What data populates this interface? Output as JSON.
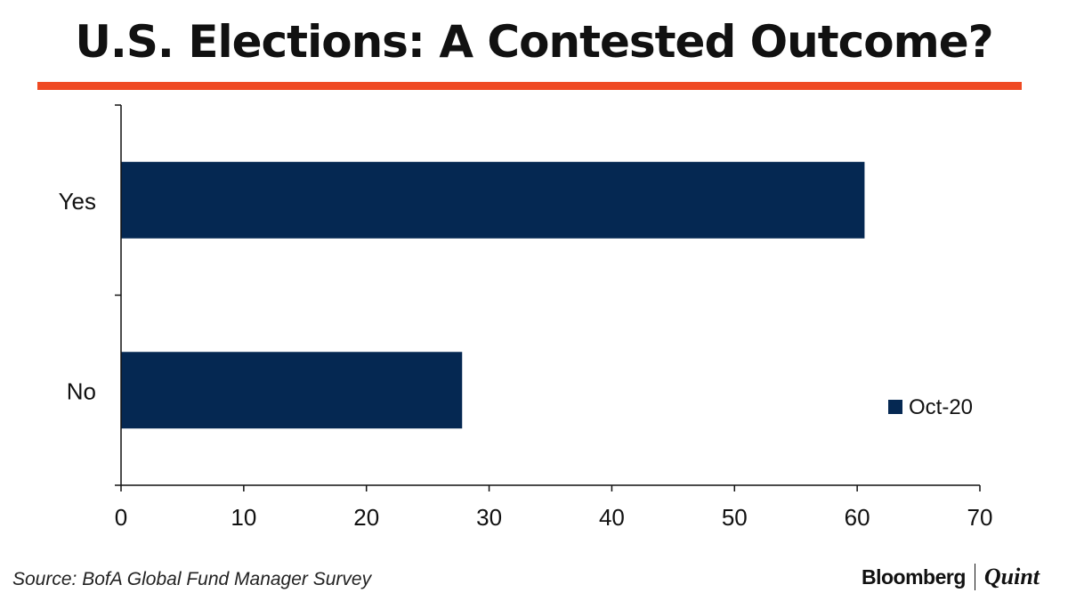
{
  "header": {
    "title": "U.S. Elections: A Contested Outcome?",
    "rule_color": "#ef4a23"
  },
  "chart_data": {
    "type": "bar",
    "orientation": "horizontal",
    "categories": [
      "Yes",
      "No"
    ],
    "series": [
      {
        "name": "Oct-20",
        "values": [
          60.6,
          27.8
        ],
        "color": "#052852"
      }
    ],
    "xlim": [
      0,
      70
    ],
    "xticks": [
      "0",
      "10",
      "20",
      "30",
      "40",
      "50",
      "60",
      "70"
    ],
    "xlabel": "",
    "ylabel": "",
    "grid": false,
    "legend_position": "right"
  },
  "footer": {
    "source": "Source: BofA Global Fund Manager Survey",
    "brand_primary": "Bloomberg",
    "brand_secondary": "Quint"
  }
}
